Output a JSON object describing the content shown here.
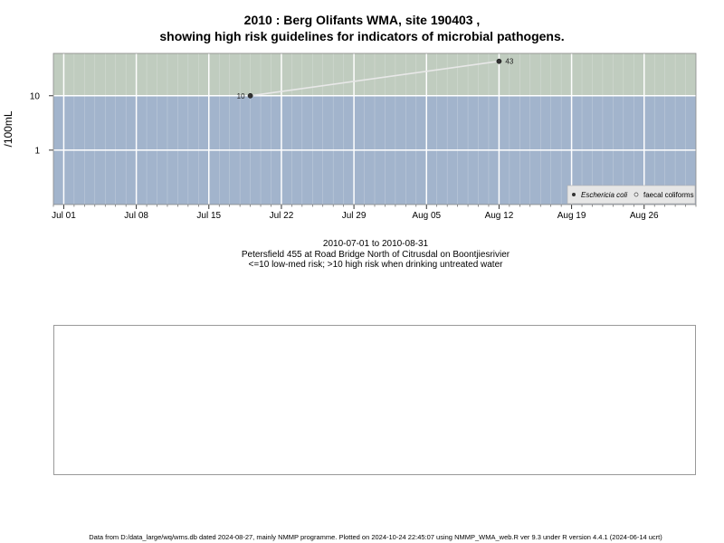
{
  "title_line1": "2010 : Berg Olifants WMA, site 190403 ,",
  "title_line2": "showing high risk guidelines for indicators of microbial pathogens.",
  "colors": {
    "high_risk_band": "#c0ccbf",
    "low_risk_band": "#a2b4cc",
    "line": "#e8e8e8",
    "point": "#333333"
  },
  "chart_data": {
    "type": "line",
    "ylabel": "/100mL",
    "y_scale": "log",
    "x_ticks": [
      "Jul 01",
      "Jul 08",
      "Jul 15",
      "Jul 22",
      "Jul 29",
      "Aug 05",
      "Aug 12",
      "Aug 19",
      "Aug 26"
    ],
    "y_ticks": [
      1,
      10
    ],
    "xlim": [
      "2010-06-30",
      "2010-08-31"
    ],
    "ylim": [
      0.1,
      60
    ],
    "guideline": 10,
    "grid": true,
    "legend_position": "bottom-right",
    "series": [
      {
        "name": "Eschericia coli",
        "points": [
          {
            "x": "2010-07-19",
            "y": 10,
            "label": "10"
          },
          {
            "x": "2010-08-12",
            "y": 43,
            "label": "43"
          }
        ]
      },
      {
        "name": "faecal coliforms",
        "points": []
      }
    ]
  },
  "subtitle_line1": "2010-07-01 to 2010-08-31",
  "subtitle_line2": "Petersfield 455 at Road Bridge North of Citrusdal on Boontjiesrivier",
  "subtitle_line3": "<=10 low-med risk; >10 high risk when drinking untreated water",
  "footer": "Data from D:/data_large/wq/wms.db dated 2024-08-27, mainly NMMP programme. Plotted on 2024-10-24 22:45:07 using NMMP_WMA_web.R ver 9.3 under R version 4.4.1 (2024-06-14 ucrt)"
}
